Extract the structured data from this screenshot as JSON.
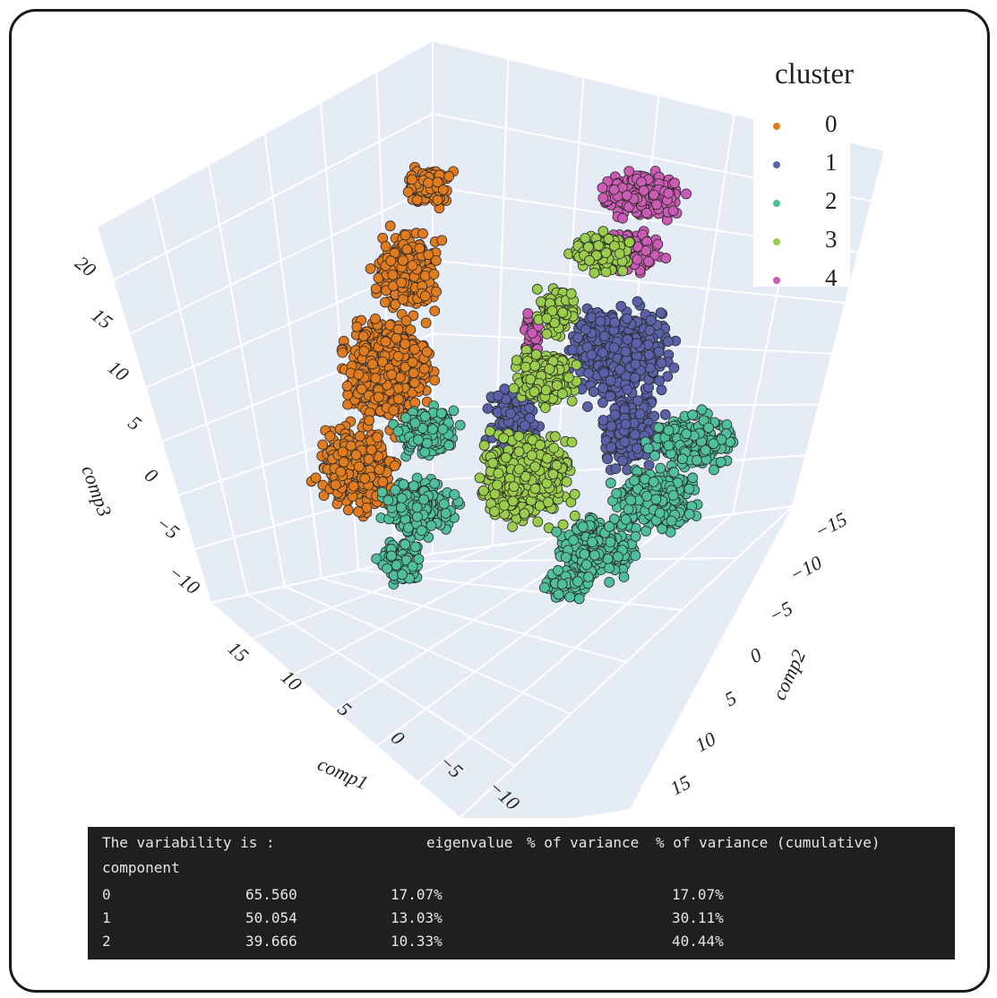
{
  "chart_data": {
    "type": "scatter",
    "projection": "3d",
    "legend_title": "cluster",
    "axes": {
      "x": {
        "label": "comp1",
        "ticks": [
          "15",
          "10",
          "5",
          "0",
          "−5",
          "−10"
        ]
      },
      "y": {
        "label": "comp2",
        "ticks": [
          "−15",
          "−10",
          "−5",
          "0",
          "5",
          "10",
          "15"
        ]
      },
      "z": {
        "label": "comp3",
        "ticks": [
          "20",
          "15",
          "10",
          "5",
          "0",
          "−5",
          "−10"
        ]
      }
    },
    "series": [
      {
        "name": "0",
        "color": "#e07b1f"
      },
      {
        "name": "1",
        "color": "#5961a8"
      },
      {
        "name": "2",
        "color": "#4fbf9c"
      },
      {
        "name": "3",
        "color": "#9acd4c"
      },
      {
        "name": "4",
        "color": "#cc5bb5"
      }
    ]
  },
  "console": {
    "title": "The variability is :",
    "headers": [
      "eigenvalue",
      "% of variance",
      "% of variance (cumulative)"
    ],
    "index_label": "component",
    "rows": [
      {
        "component": "0",
        "eigenvalue": "65.560",
        "variance": "17.07%",
        "cumulative": "17.07%"
      },
      {
        "component": "1",
        "eigenvalue": "50.054",
        "variance": "13.03%",
        "cumulative": "30.11%"
      },
      {
        "component": "2",
        "eigenvalue": "39.666",
        "variance": "10.33%",
        "cumulative": "40.44%"
      }
    ]
  }
}
